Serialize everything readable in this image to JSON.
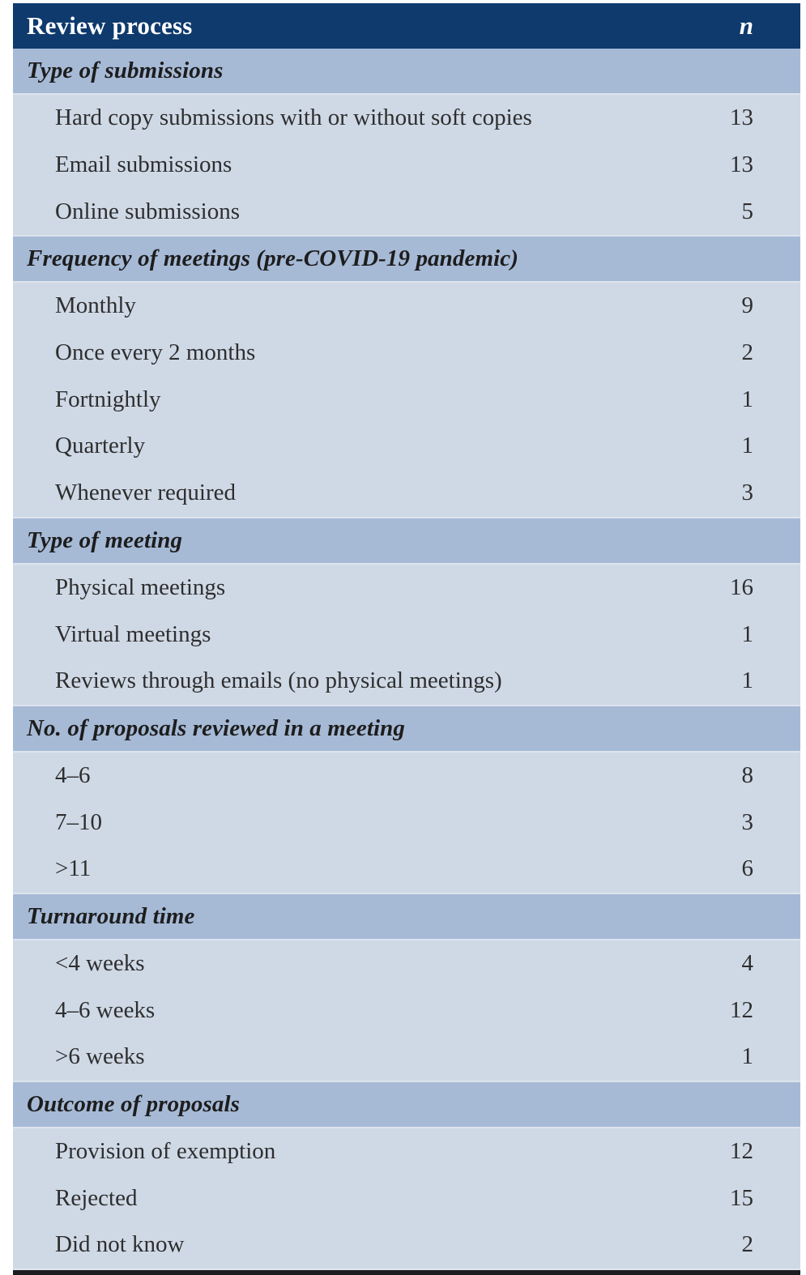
{
  "table": {
    "header": {
      "label": "Review process",
      "n_label": "n"
    },
    "sections": [
      {
        "title": "Type of submissions",
        "rows": [
          {
            "label": "Hard copy submissions with or without soft copies",
            "n": "13"
          },
          {
            "label": "Email submissions",
            "n": "13"
          },
          {
            "label": "Online submissions",
            "n": "5"
          }
        ]
      },
      {
        "title": "Frequency of meetings (pre-COVID-19 pandemic)",
        "rows": [
          {
            "label": "Monthly",
            "n": "9"
          },
          {
            "label": "Once every 2 months",
            "n": "2"
          },
          {
            "label": "Fortnightly",
            "n": "1"
          },
          {
            "label": "Quarterly",
            "n": "1"
          },
          {
            "label": "Whenever required",
            "n": "3"
          }
        ]
      },
      {
        "title": "Type of meeting",
        "rows": [
          {
            "label": "Physical meetings",
            "n": "16"
          },
          {
            "label": "Virtual meetings",
            "n": "1"
          },
          {
            "label": "Reviews through emails (no physical meetings)",
            "n": "1"
          }
        ]
      },
      {
        "title": "No. of proposals reviewed in a meeting",
        "rows": [
          {
            "label": "4–6",
            "n": "8"
          },
          {
            "label": "7–10",
            "n": "3"
          },
          {
            "label": ">11",
            "n": "6"
          }
        ]
      },
      {
        "title": "Turnaround time",
        "rows": [
          {
            "label": "<4 weeks",
            "n": "4"
          },
          {
            "label": "4–6 weeks",
            "n": "12"
          },
          {
            "label": ">6 weeks",
            "n": "1"
          }
        ]
      },
      {
        "title": "Outcome of proposals",
        "rows": [
          {
            "label": "Provision of exemption",
            "n": "12"
          },
          {
            "label": "Rejected",
            "n": "15"
          },
          {
            "label": "Did not know",
            "n": "2"
          }
        ]
      }
    ]
  },
  "colors": {
    "header_bg": "#0e3a6d",
    "header_text": "#ffffff",
    "section_band_bg": "#a6bad6",
    "row_bg": "#cfd9e6",
    "separator": "#dde4ee",
    "body_text": "#2e2e2e",
    "bottom_rule": "#1a1c20"
  }
}
